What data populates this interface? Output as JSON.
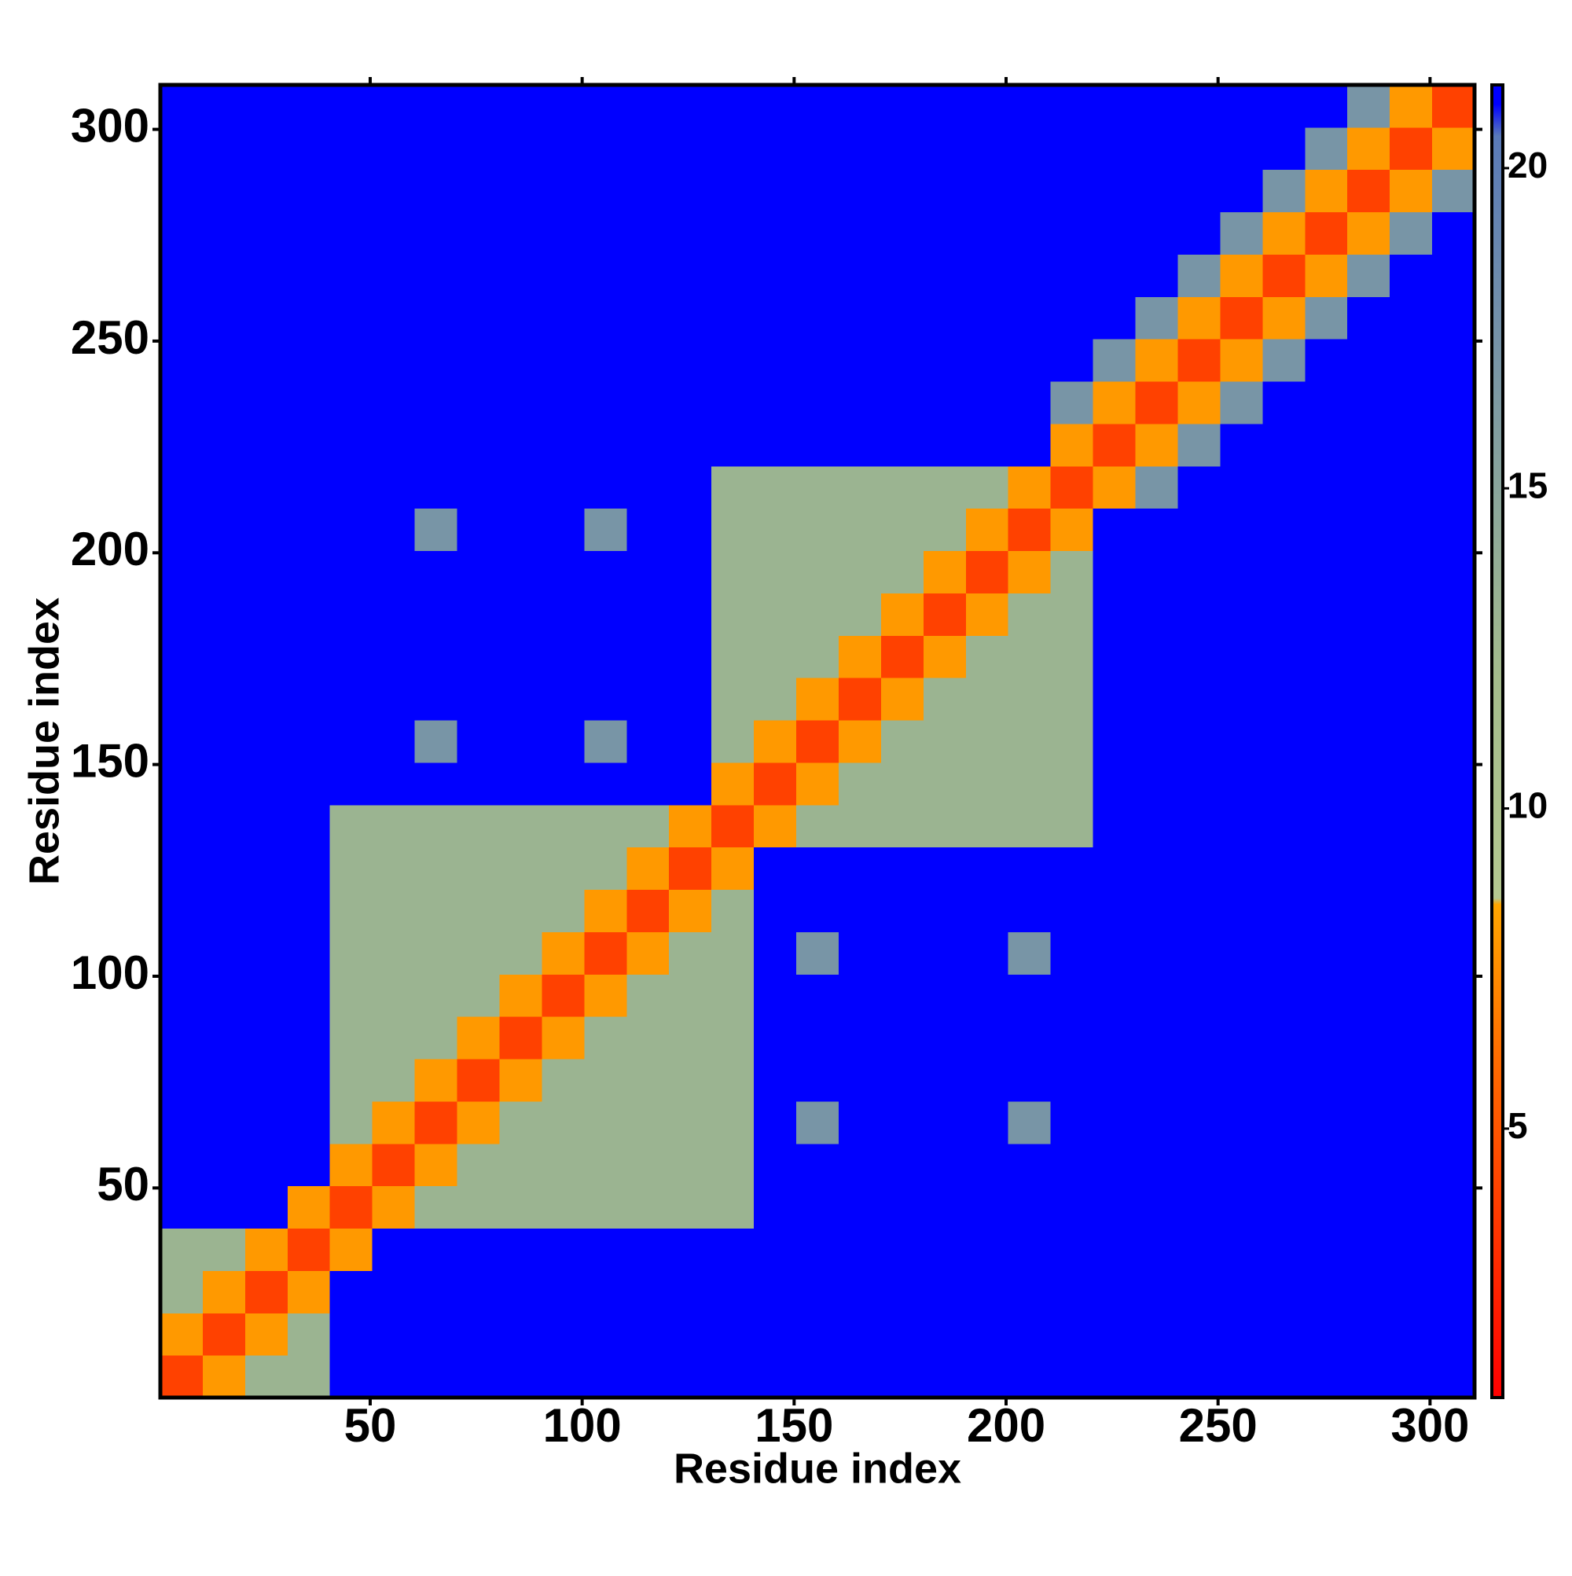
{
  "chart_data": {
    "type": "heatmap",
    "xlabel": "Residue index",
    "ylabel": "Residue index",
    "xbins": [
      0.5,
      10.5,
      20.5,
      30.5,
      40.5,
      50.5,
      60.5,
      70.5,
      80.5,
      90.5,
      100.5,
      110.5,
      120.5,
      130.5,
      140.5,
      150.5,
      160.5,
      170.5,
      180.5,
      190.5,
      200.5,
      210.5,
      220.5,
      230.5,
      240.5,
      250.5,
      260.5,
      270.5,
      280.5,
      290.5,
      300.5,
      310.5
    ],
    "ybins": [
      0.5,
      10.5,
      20.5,
      30.5,
      40.5,
      50.5,
      60.5,
      70.5,
      80.5,
      90.5,
      100.5,
      110.5,
      120.5,
      130.5,
      140.5,
      150.5,
      160.5,
      170.5,
      180.5,
      190.5,
      200.5,
      210.5,
      220.5,
      230.5,
      240.5,
      250.5,
      260.5,
      270.5,
      280.5,
      290.5,
      300.5,
      310.5
    ],
    "values": [
      [
        4,
        8,
        13,
        13,
        21,
        21,
        21,
        21,
        21,
        21,
        21,
        21,
        21,
        21,
        21,
        21,
        21,
        21,
        21,
        21,
        21,
        21,
        21,
        21,
        21,
        21,
        21,
        21,
        21,
        21,
        21
      ],
      [
        8,
        4,
        8,
        13,
        21,
        21,
        21,
        21,
        21,
        21,
        21,
        21,
        21,
        21,
        21,
        21,
        21,
        21,
        21,
        21,
        21,
        21,
        21,
        21,
        21,
        21,
        21,
        21,
        21,
        21,
        21
      ],
      [
        13,
        8,
        4,
        8,
        21,
        21,
        21,
        21,
        21,
        21,
        21,
        21,
        21,
        21,
        21,
        21,
        21,
        21,
        21,
        21,
        21,
        21,
        21,
        21,
        21,
        21,
        21,
        21,
        21,
        21,
        21
      ],
      [
        13,
        13,
        8,
        4,
        8,
        21,
        21,
        21,
        21,
        21,
        21,
        21,
        21,
        21,
        21,
        21,
        21,
        21,
        21,
        21,
        21,
        21,
        21,
        21,
        21,
        21,
        21,
        21,
        21,
        21,
        21
      ],
      [
        21,
        21,
        21,
        8,
        4,
        8,
        13,
        13,
        13,
        13,
        13,
        13,
        13,
        13,
        21,
        21,
        21,
        21,
        21,
        21,
        21,
        21,
        21,
        21,
        21,
        21,
        21,
        21,
        21,
        21,
        21
      ],
      [
        21,
        21,
        21,
        21,
        8,
        4,
        8,
        13,
        13,
        13,
        13,
        13,
        13,
        13,
        21,
        21,
        21,
        21,
        21,
        21,
        21,
        21,
        21,
        21,
        21,
        21,
        21,
        21,
        21,
        21,
        21
      ],
      [
        21,
        21,
        21,
        21,
        13,
        8,
        4,
        8,
        13,
        13,
        13,
        13,
        13,
        13,
        21,
        17,
        21,
        21,
        21,
        21,
        17,
        21,
        21,
        21,
        21,
        21,
        21,
        21,
        21,
        21,
        21
      ],
      [
        21,
        21,
        21,
        21,
        13,
        13,
        8,
        4,
        8,
        13,
        13,
        13,
        13,
        13,
        21,
        21,
        21,
        21,
        21,
        21,
        21,
        21,
        21,
        21,
        21,
        21,
        21,
        21,
        21,
        21,
        21
      ],
      [
        21,
        21,
        21,
        21,
        13,
        13,
        13,
        8,
        4,
        8,
        13,
        13,
        13,
        13,
        21,
        21,
        21,
        21,
        21,
        21,
        21,
        21,
        21,
        21,
        21,
        21,
        21,
        21,
        21,
        21,
        21
      ],
      [
        21,
        21,
        21,
        21,
        13,
        13,
        13,
        13,
        8,
        4,
        8,
        13,
        13,
        13,
        21,
        21,
        21,
        21,
        21,
        21,
        21,
        21,
        21,
        21,
        21,
        21,
        21,
        21,
        21,
        21,
        21
      ],
      [
        21,
        21,
        21,
        21,
        13,
        13,
        13,
        13,
        13,
        8,
        4,
        8,
        13,
        13,
        21,
        17,
        21,
        21,
        21,
        21,
        17,
        21,
        21,
        21,
        21,
        21,
        21,
        21,
        21,
        21,
        21
      ],
      [
        21,
        21,
        21,
        21,
        13,
        13,
        13,
        13,
        13,
        13,
        8,
        4,
        8,
        13,
        21,
        21,
        21,
        21,
        21,
        21,
        21,
        21,
        21,
        21,
        21,
        21,
        21,
        21,
        21,
        21,
        21
      ],
      [
        21,
        21,
        21,
        21,
        13,
        13,
        13,
        13,
        13,
        13,
        13,
        8,
        4,
        8,
        21,
        21,
        21,
        21,
        21,
        21,
        21,
        21,
        21,
        21,
        21,
        21,
        21,
        21,
        21,
        21,
        21
      ],
      [
        21,
        21,
        21,
        21,
        13,
        13,
        13,
        13,
        13,
        13,
        13,
        13,
        8,
        4,
        8,
        13,
        13,
        13,
        13,
        13,
        13,
        13,
        21,
        21,
        21,
        21,
        21,
        21,
        21,
        21,
        21
      ],
      [
        21,
        21,
        21,
        21,
        21,
        21,
        21,
        21,
        21,
        21,
        21,
        21,
        21,
        8,
        4,
        8,
        13,
        13,
        13,
        13,
        13,
        13,
        21,
        21,
        21,
        21,
        21,
        21,
        21,
        21,
        21
      ],
      [
        21,
        21,
        21,
        21,
        21,
        21,
        17,
        21,
        21,
        21,
        17,
        21,
        21,
        13,
        8,
        4,
        8,
        13,
        13,
        13,
        13,
        13,
        21,
        21,
        21,
        21,
        21,
        21,
        21,
        21,
        21
      ],
      [
        21,
        21,
        21,
        21,
        21,
        21,
        21,
        21,
        21,
        21,
        21,
        21,
        21,
        13,
        13,
        8,
        4,
        8,
        13,
        13,
        13,
        13,
        21,
        21,
        21,
        21,
        21,
        21,
        21,
        21,
        21
      ],
      [
        21,
        21,
        21,
        21,
        21,
        21,
        21,
        21,
        21,
        21,
        21,
        21,
        21,
        13,
        13,
        13,
        8,
        4,
        8,
        13,
        13,
        13,
        21,
        21,
        21,
        21,
        21,
        21,
        21,
        21,
        21
      ],
      [
        21,
        21,
        21,
        21,
        21,
        21,
        21,
        21,
        21,
        21,
        21,
        21,
        21,
        13,
        13,
        13,
        13,
        8,
        4,
        8,
        13,
        13,
        21,
        21,
        21,
        21,
        21,
        21,
        21,
        21,
        21
      ],
      [
        21,
        21,
        21,
        21,
        21,
        21,
        21,
        21,
        21,
        21,
        21,
        21,
        21,
        13,
        13,
        13,
        13,
        13,
        8,
        4,
        8,
        13,
        21,
        21,
        21,
        21,
        21,
        21,
        21,
        21,
        21
      ],
      [
        21,
        21,
        21,
        21,
        21,
        21,
        17,
        21,
        21,
        21,
        17,
        21,
        21,
        13,
        13,
        13,
        13,
        13,
        13,
        8,
        4,
        8,
        21,
        21,
        21,
        21,
        21,
        21,
        21,
        21,
        21
      ],
      [
        21,
        21,
        21,
        21,
        21,
        21,
        21,
        21,
        21,
        21,
        21,
        21,
        21,
        13,
        13,
        13,
        13,
        13,
        13,
        13,
        8,
        4,
        8,
        17,
        21,
        21,
        21,
        21,
        21,
        21,
        21
      ],
      [
        21,
        21,
        21,
        21,
        21,
        21,
        21,
        21,
        21,
        21,
        21,
        21,
        21,
        21,
        21,
        21,
        21,
        21,
        21,
        21,
        21,
        8,
        4,
        8,
        17,
        21,
        21,
        21,
        21,
        21,
        21
      ],
      [
        21,
        21,
        21,
        21,
        21,
        21,
        21,
        21,
        21,
        21,
        21,
        21,
        21,
        21,
        21,
        21,
        21,
        21,
        21,
        21,
        21,
        17,
        8,
        4,
        8,
        17,
        21,
        21,
        21,
        21,
        21
      ],
      [
        21,
        21,
        21,
        21,
        21,
        21,
        21,
        21,
        21,
        21,
        21,
        21,
        21,
        21,
        21,
        21,
        21,
        21,
        21,
        21,
        21,
        21,
        17,
        8,
        4,
        8,
        17,
        21,
        21,
        21,
        21
      ],
      [
        21,
        21,
        21,
        21,
        21,
        21,
        21,
        21,
        21,
        21,
        21,
        21,
        21,
        21,
        21,
        21,
        21,
        21,
        21,
        21,
        21,
        21,
        21,
        17,
        8,
        4,
        8,
        17,
        21,
        21,
        21
      ],
      [
        21,
        21,
        21,
        21,
        21,
        21,
        21,
        21,
        21,
        21,
        21,
        21,
        21,
        21,
        21,
        21,
        21,
        21,
        21,
        21,
        21,
        21,
        21,
        21,
        17,
        8,
        4,
        8,
        17,
        21,
        21
      ],
      [
        21,
        21,
        21,
        21,
        21,
        21,
        21,
        21,
        21,
        21,
        21,
        21,
        21,
        21,
        21,
        21,
        21,
        21,
        21,
        21,
        21,
        21,
        21,
        21,
        21,
        17,
        8,
        4,
        8,
        17,
        21
      ],
      [
        21,
        21,
        21,
        21,
        21,
        21,
        21,
        21,
        21,
        21,
        21,
        21,
        21,
        21,
        21,
        21,
        21,
        21,
        21,
        21,
        21,
        21,
        21,
        21,
        21,
        21,
        17,
        8,
        4,
        8,
        17
      ],
      [
        21,
        21,
        21,
        21,
        21,
        21,
        21,
        21,
        21,
        21,
        21,
        21,
        21,
        21,
        21,
        21,
        21,
        21,
        21,
        21,
        21,
        21,
        21,
        21,
        21,
        21,
        21,
        17,
        8,
        4,
        8
      ],
      [
        21,
        21,
        21,
        21,
        21,
        21,
        21,
        21,
        21,
        21,
        21,
        21,
        21,
        21,
        21,
        21,
        21,
        21,
        21,
        21,
        21,
        21,
        21,
        21,
        21,
        21,
        21,
        21,
        17,
        8,
        4
      ]
    ],
    "xlim": [
      0.5,
      310.5
    ],
    "ylim": [
      0.5,
      310.5
    ],
    "xticks": [
      50,
      100,
      150,
      200,
      250,
      300
    ],
    "yticks": [
      50,
      100,
      150,
      200,
      250,
      300
    ],
    "clim": [
      0.8,
      21.3
    ],
    "cticks": [
      5,
      10,
      15,
      20
    ],
    "colorscale": [
      [
        0.8,
        "#ff0000"
      ],
      [
        6,
        "#ff6a00"
      ],
      [
        8.5,
        "#ffa500"
      ],
      [
        8.6,
        "#b4c890"
      ],
      [
        12,
        "#a4bc8c"
      ],
      [
        20.5,
        "#5a7ab8"
      ],
      [
        21,
        "#0000ff"
      ]
    ]
  }
}
